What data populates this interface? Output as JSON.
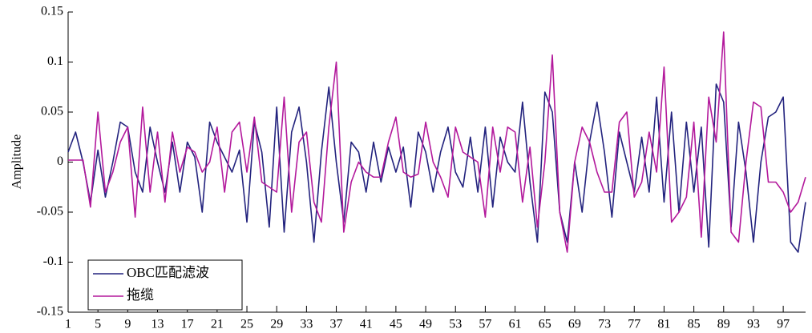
{
  "chart_data": {
    "type": "line",
    "y_label": "Amplitude",
    "x": [
      1,
      2,
      3,
      4,
      5,
      6,
      7,
      8,
      9,
      10,
      11,
      12,
      13,
      14,
      15,
      16,
      17,
      18,
      19,
      20,
      21,
      22,
      23,
      24,
      25,
      26,
      27,
      28,
      29,
      30,
      31,
      32,
      33,
      34,
      35,
      36,
      37,
      38,
      39,
      40,
      41,
      42,
      43,
      44,
      45,
      46,
      47,
      48,
      49,
      50,
      51,
      52,
      53,
      54,
      55,
      56,
      57,
      58,
      59,
      60,
      61,
      62,
      63,
      64,
      65,
      66,
      67,
      68,
      69,
      70,
      71,
      72,
      73,
      74,
      75,
      76,
      77,
      78,
      79,
      80,
      81,
      82,
      83,
      84,
      85,
      86,
      87,
      88,
      89,
      90,
      91,
      92,
      93,
      94,
      95,
      96,
      97,
      98,
      99,
      100
    ],
    "series": [
      {
        "name": "OBC匹配滤波",
        "color": "#23237e",
        "values": [
          0.01,
          0.03,
          0.0,
          -0.04,
          0.012,
          -0.035,
          0.0,
          0.04,
          0.035,
          -0.01,
          -0.03,
          0.035,
          0.0,
          -0.03,
          0.02,
          -0.03,
          0.02,
          0.005,
          -0.05,
          0.04,
          0.02,
          0.005,
          -0.01,
          0.012,
          -0.06,
          0.04,
          0.01,
          -0.065,
          0.055,
          -0.07,
          0.03,
          0.055,
          0.0,
          -0.08,
          0.01,
          0.075,
          0.0,
          -0.06,
          0.02,
          0.01,
          -0.03,
          0.02,
          -0.02,
          0.015,
          -0.01,
          0.015,
          -0.045,
          0.03,
          0.01,
          -0.03,
          0.01,
          0.035,
          -0.01,
          -0.025,
          0.025,
          -0.03,
          0.035,
          -0.045,
          0.025,
          0.0,
          -0.01,
          0.06,
          -0.02,
          -0.08,
          0.07,
          0.05,
          -0.05,
          -0.08,
          0.0,
          -0.05,
          0.02,
          0.06,
          0.01,
          -0.055,
          0.03,
          0.0,
          -0.03,
          0.025,
          -0.03,
          0.065,
          -0.04,
          0.05,
          -0.05,
          0.04,
          -0.03,
          0.035,
          -0.085,
          0.078,
          0.06,
          -0.065,
          0.04,
          -0.01,
          -0.08,
          0.0,
          0.045,
          0.05,
          0.065,
          -0.08,
          -0.09,
          -0.04
        ]
      },
      {
        "name": "拖缆",
        "color": "#b3199c",
        "values": [
          0.002,
          0.002,
          0.002,
          -0.045,
          0.05,
          -0.03,
          -0.01,
          0.02,
          0.035,
          -0.055,
          0.055,
          -0.03,
          0.03,
          -0.04,
          0.03,
          -0.01,
          0.015,
          0.01,
          -0.01,
          0.0,
          0.035,
          -0.03,
          0.03,
          0.04,
          -0.01,
          0.045,
          -0.02,
          -0.025,
          -0.03,
          0.065,
          -0.05,
          0.02,
          0.03,
          -0.04,
          -0.06,
          0.035,
          0.1,
          -0.07,
          -0.02,
          0.0,
          -0.01,
          -0.015,
          -0.015,
          0.02,
          0.045,
          -0.01,
          -0.015,
          -0.012,
          0.04,
          0.0,
          -0.015,
          -0.035,
          0.035,
          0.01,
          0.005,
          0.0,
          -0.055,
          0.035,
          -0.01,
          0.035,
          0.03,
          -0.04,
          0.015,
          -0.065,
          0.0,
          0.107,
          -0.05,
          -0.09,
          0.0,
          0.035,
          0.02,
          -0.01,
          -0.03,
          -0.03,
          0.04,
          0.05,
          -0.035,
          -0.02,
          0.03,
          -0.01,
          0.095,
          -0.06,
          -0.05,
          -0.035,
          0.04,
          -0.075,
          0.065,
          0.02,
          0.13,
          -0.07,
          -0.08,
          0.0,
          0.06,
          0.055,
          -0.02,
          -0.02,
          -0.03,
          -0.05,
          -0.04,
          -0.015
        ]
      }
    ],
    "xlim": [
      1,
      100
    ],
    "xticks": [
      1,
      5,
      9,
      13,
      17,
      21,
      25,
      29,
      33,
      37,
      41,
      45,
      49,
      53,
      57,
      61,
      65,
      69,
      73,
      77,
      81,
      85,
      89,
      93,
      97
    ],
    "ylim": [
      -0.15,
      0.15
    ],
    "yticks": [
      0.15,
      0.1,
      0.05,
      0,
      -0.05,
      -0.1,
      -0.15
    ],
    "legend": "lower left"
  }
}
